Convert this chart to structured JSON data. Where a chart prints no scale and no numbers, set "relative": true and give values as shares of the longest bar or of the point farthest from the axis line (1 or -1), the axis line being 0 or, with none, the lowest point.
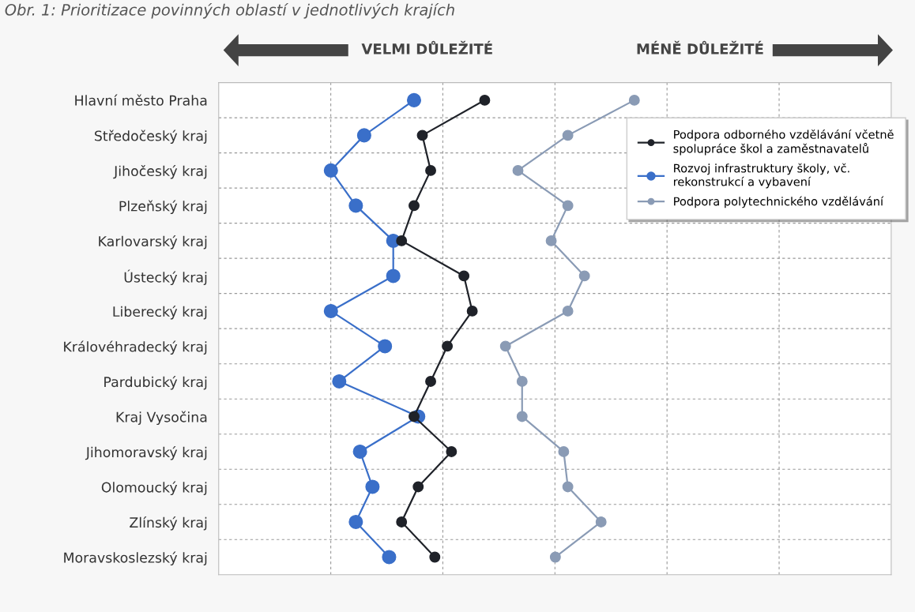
{
  "chart_data": {
    "type": "line",
    "orientation": "horizontal",
    "relative": true,
    "title": "Obr. 1: Prioritizace povinných oblastí v jednotlivých krajích",
    "annotations": [
      "VELMI DŮLEŽITÉ",
      "MÉNĚ DŮLEŽITÉ"
    ],
    "categories": [
      "Hlavní město Praha",
      "Středočeský kraj",
      "Jihočeský kraj",
      "Plzeňský kraj",
      "Karlovarský kraj",
      "Ústecký kraj",
      "Liberecký kraj",
      "Královéhradecký kraj",
      "Pardubický kraj",
      "Kraj Vysočina",
      "Jihomoravský kraj",
      "Olomoucký kraj",
      "Zlínský kraj",
      "Moravskoslezský kraj"
    ],
    "series": [
      {
        "name": "Podpora odborného vzdělávání včetně spolupráce škol a zaměstnavatelů",
        "color": "#1f2229",
        "values": [
          0.64,
          0.49,
          0.51,
          0.47,
          0.44,
          0.59,
          0.61,
          0.55,
          0.51,
          0.47,
          0.56,
          0.48,
          0.44,
          0.52
        ]
      },
      {
        "name": "Rozvoj infrastruktury školy, vč. rekonstrukcí a vybavení",
        "color": "#3a6fc9",
        "values": [
          0.47,
          0.35,
          0.27,
          0.33,
          0.42,
          0.42,
          0.27,
          0.4,
          0.29,
          0.48,
          0.34,
          0.37,
          0.33,
          0.41
        ]
      },
      {
        "name": "Podpora polytechnického vzdělávání",
        "color": "#8a9bb5",
        "values": [
          1,
          0.84,
          0.72,
          0.84,
          0.8,
          0.88,
          0.84,
          0.69,
          0.73,
          0.73,
          0.83,
          0.84,
          0.92,
          0.81
        ]
      }
    ],
    "marker": "circle",
    "line_style": "solid",
    "grid": true,
    "legend": "top right"
  }
}
